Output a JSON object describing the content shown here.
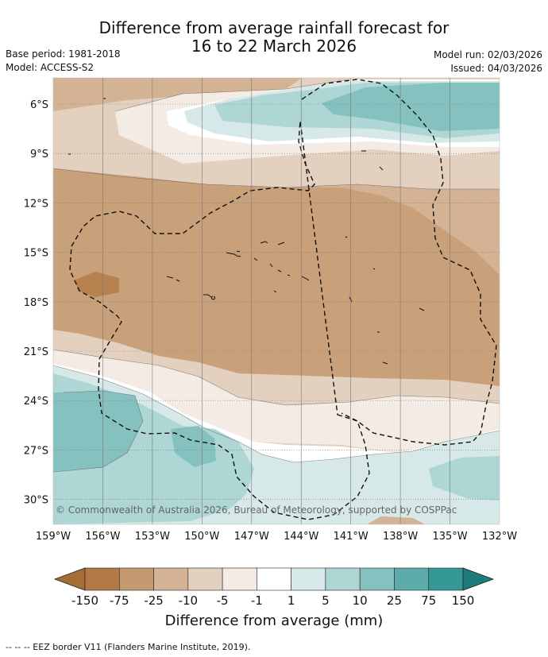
{
  "title_line1": "Difference from average rainfall forecast for",
  "title_line2": "16 to 22 March 2026",
  "base_period": "Base period: 1981-2018",
  "model": "Model: ACCESS-S2",
  "model_run": "Model run: 02/03/2026",
  "issued": "Issued: 04/03/2026",
  "copyright": "© Commonwealth of Australia 2026, Bureau of Meteorology, supported by COSPPac",
  "lat_labels": [
    "6°S",
    "9°S",
    "12°S",
    "15°S",
    "18°S",
    "21°S",
    "24°S",
    "27°S",
    "30°S"
  ],
  "lon_labels": [
    "159°W",
    "156°W",
    "153°W",
    "150°W",
    "147°W",
    "144°W",
    "141°W",
    "138°W",
    "135°W",
    "132°W"
  ],
  "colorbar": {
    "title": "Difference from average (mm)",
    "ticks": [
      "-150",
      "-75",
      "-25",
      "-10",
      "-5",
      "-1",
      "1",
      "5",
      "10",
      "25",
      "75",
      "150"
    ],
    "colors": [
      "#a66d36",
      "#b37a48",
      "#c49a72",
      "#d4b294",
      "#e4d0bf",
      "#f3ebe4",
      "#ffffff",
      "#d6e9e8",
      "#add6d4",
      "#85c1bf",
      "#5cacaa",
      "#359896",
      "#1f7b79"
    ]
  },
  "footnote": "--  --  -- EEZ border V11 (Flanders Marine Institute, 2019).",
  "colors": {
    "dry": "#c49a72",
    "wet": "#85c1bf",
    "grid": "#777777"
  }
}
